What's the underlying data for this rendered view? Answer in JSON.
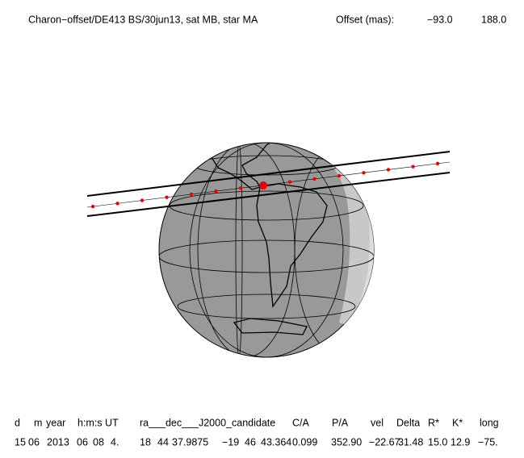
{
  "header": {
    "title": "Charon−offset/DE413 BS/30jun13, sat MB, star MA",
    "offset_label": "Offset (mas):",
    "offset_values": [
      "−93.0",
      "188.0"
    ]
  },
  "table": {
    "headers": [
      "d",
      "m",
      "year",
      "h:m:s UT",
      "ra___dec___J2000_candidate",
      "C/A",
      "P/A",
      "vel",
      "Delta",
      "R*",
      "K*",
      "long"
    ],
    "row": [
      "15",
      "06",
      "2013",
      "06",
      "08",
      "4.",
      "18",
      "44",
      "37.9875",
      "−19",
      "46",
      "43.364",
      "0.099",
      "352.90",
      "−22.67",
      "31.48",
      "15.0",
      "12.9",
      "−75."
    ]
  }
}
